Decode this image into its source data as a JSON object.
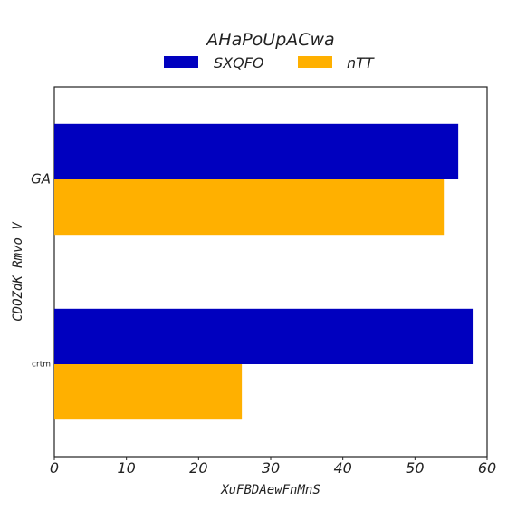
{
  "chart_data": {
    "type": "bar",
    "orientation": "horizontal",
    "title": "AHaPoUpACwa",
    "xlabel": "XuFBDAewFnMnS",
    "ylabel": "CDOZdK  Rmvo  V",
    "categories": [
      "GA",
      "crtm"
    ],
    "series": [
      {
        "name": "SXQFO",
        "color": "#0000bf",
        "values": [
          56,
          58
        ]
      },
      {
        "name": "nTT",
        "color": "#ffb000",
        "values": [
          54,
          26
        ]
      }
    ],
    "xlim": [
      0,
      60
    ],
    "xticks": [
      "0",
      "10",
      "20",
      "30",
      "40",
      "50",
      "60"
    ],
    "grid": false,
    "legend_position": "top-center"
  }
}
